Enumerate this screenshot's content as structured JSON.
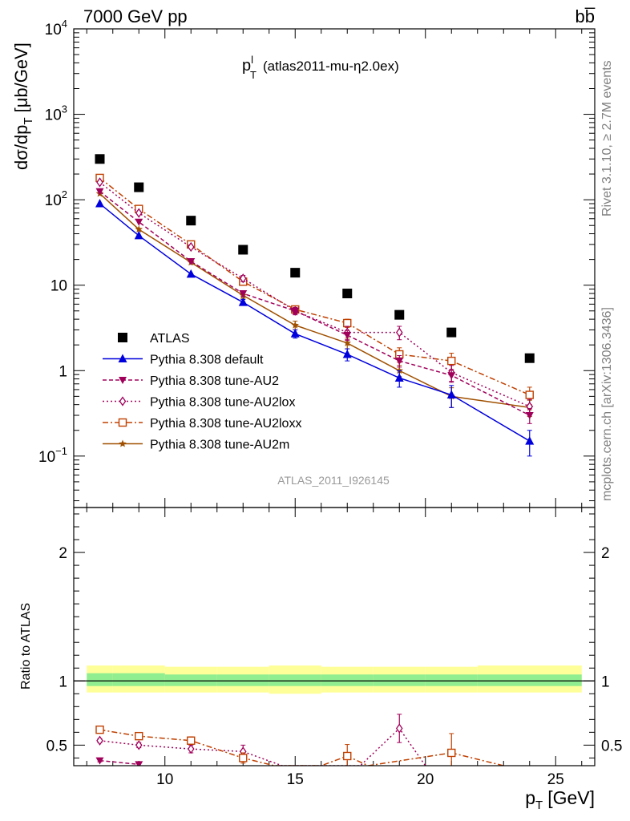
{
  "header": {
    "left": "7000 GeV pp",
    "right": "bb̅"
  },
  "side_labels": {
    "rivet": "Rivet 3.1.10, ≥ 2.7M events",
    "mcplots": "mcplots.cern.ch [arXiv:1306.3436]"
  },
  "chart_data": [
    {
      "type": "line",
      "panel": "main",
      "title": "p",
      "title_sup": "l",
      "title_sub": "T",
      "title_rest": "(atlas2011-mu-η2.0ex)",
      "ylabel": "dσ/dp",
      "ylabel_sub": "T",
      "ylabel_rest": "[μb/GeV]",
      "yscale": "log",
      "ylim": [
        0.025,
        10000
      ],
      "xlim": [
        6.5,
        26.5
      ],
      "yticks": [
        {
          "v": 0.1,
          "base": "10",
          "exp": "−1"
        },
        {
          "v": 1,
          "base": "1",
          "exp": ""
        },
        {
          "v": 10,
          "base": "10",
          "exp": ""
        },
        {
          "v": 100,
          "base": "10",
          "exp": "2"
        },
        {
          "v": 1000,
          "base": "10",
          "exp": "3"
        },
        {
          "v": 10000,
          "base": "10",
          "exp": "4"
        }
      ],
      "watermark": "ATLAS_2011_I926145",
      "legend_position": "lower-left",
      "data_series": {
        "name": "ATLAS",
        "color": "#000000",
        "x": [
          7.5,
          9,
          11,
          13,
          15,
          17,
          19,
          21,
          24
        ],
        "y": [
          300,
          140,
          57,
          26,
          14,
          8,
          4.5,
          2.8,
          1.4
        ]
      },
      "series": [
        {
          "name": "Pythia 8.308 default",
          "color": "#0000dd",
          "dash": "",
          "marker": "triangle-up",
          "x": [
            7.5,
            9,
            11,
            13,
            15,
            17,
            19,
            21,
            24
          ],
          "y": [
            90,
            38,
            13.5,
            6.3,
            2.7,
            1.55,
            0.82,
            0.52,
            0.15
          ],
          "err": [
            0,
            0,
            0,
            0.5,
            0.3,
            0.25,
            0.18,
            0.15,
            0.05
          ]
        },
        {
          "name": "Pythia 8.308 tune-AU2",
          "color": "#a0005a",
          "dash": "5,3",
          "marker": "triangle-down",
          "x": [
            7.5,
            9,
            11,
            13,
            15,
            17,
            19,
            21,
            24
          ],
          "y": [
            125,
            55,
            19,
            8,
            5,
            2.6,
            1.3,
            0.88,
            0.3
          ],
          "err": [
            0,
            0,
            0,
            0.6,
            0.4,
            0.35,
            0.2,
            0.15,
            0.06
          ]
        },
        {
          "name": "Pythia 8.308 tune-AU2lox",
          "color": "#a0005a",
          "dash": "2,3",
          "marker": "diamond-open",
          "x": [
            7.5,
            9,
            11,
            13,
            15,
            17,
            19,
            21,
            24
          ],
          "y": [
            160,
            70,
            28,
            12,
            5,
            2.8,
            2.8,
            0.95,
            0.38
          ],
          "err": [
            0,
            0,
            0,
            1,
            0.5,
            0.5,
            0.5,
            0.2,
            0.08
          ]
        },
        {
          "name": "Pythia 8.308 tune-AU2loxx",
          "color": "#c04000",
          "dash": "7,3,2,3",
          "marker": "square-open",
          "x": [
            7.5,
            9,
            11,
            13,
            15,
            17,
            19,
            21,
            24
          ],
          "y": [
            180,
            78,
            30,
            11,
            5.2,
            3.6,
            1.55,
            1.3,
            0.52
          ],
          "err": [
            0,
            0,
            0,
            1,
            0.5,
            0.4,
            0.3,
            0.3,
            0.12
          ]
        },
        {
          "name": "Pythia 8.308 tune-AU2m",
          "color": "#a05000",
          "dash": "",
          "marker": "star",
          "x": [
            7.5,
            9,
            11,
            13,
            15,
            17,
            19,
            21,
            24
          ],
          "y": [
            118,
            45,
            18.5,
            7.6,
            3.4,
            2.1,
            1.0,
            0.5,
            0.37
          ],
          "err": [
            0,
            0,
            0,
            0.6,
            0.4,
            0.3,
            0.15,
            0.13,
            0.08
          ]
        }
      ]
    },
    {
      "type": "line",
      "panel": "ratio",
      "ylabel": "Ratio to ATLAS",
      "xlabel": "p",
      "xlabel_sub": "T",
      "xlabel_rest": "[GeV]",
      "xlim": [
        6.5,
        26.5
      ],
      "ylim": [
        0.34,
        2.35
      ],
      "xticks": [
        10,
        15,
        20,
        25
      ],
      "yticks": [
        0.5,
        1,
        2
      ],
      "bands": {
        "inner_color": "#90ee90",
        "outer_color": "#ffff99",
        "bins": [
          {
            "x0": 7,
            "x1": 8,
            "inner": [
              0.96,
              1.06
            ],
            "outer": [
              0.91,
              1.12
            ]
          },
          {
            "x0": 8,
            "x1": 10,
            "inner": [
              0.96,
              1.06
            ],
            "outer": [
              0.91,
              1.12
            ]
          },
          {
            "x0": 10,
            "x1": 12,
            "inner": [
              0.96,
              1.05
            ],
            "outer": [
              0.91,
              1.11
            ]
          },
          {
            "x0": 12,
            "x1": 14,
            "inner": [
              0.96,
              1.05
            ],
            "outer": [
              0.91,
              1.11
            ]
          },
          {
            "x0": 14,
            "x1": 16,
            "inner": [
              0.96,
              1.05
            ],
            "outer": [
              0.9,
              1.12
            ]
          },
          {
            "x0": 16,
            "x1": 18,
            "inner": [
              0.96,
              1.05
            ],
            "outer": [
              0.91,
              1.11
            ]
          },
          {
            "x0": 18,
            "x1": 20,
            "inner": [
              0.96,
              1.05
            ],
            "outer": [
              0.91,
              1.11
            ]
          },
          {
            "x0": 20,
            "x1": 22,
            "inner": [
              0.96,
              1.05
            ],
            "outer": [
              0.91,
              1.11
            ]
          },
          {
            "x0": 22,
            "x1": 26,
            "inner": [
              0.96,
              1.05
            ],
            "outer": [
              0.91,
              1.12
            ]
          }
        ]
      },
      "series": [
        {
          "name": "Pythia 8.308 tune-AU2",
          "color": "#a0005a",
          "dash": "5,3",
          "marker": "triangle-down",
          "x": [
            7.5,
            9
          ],
          "y": [
            0.38,
            0.35
          ],
          "err": [
            0.01,
            0.01
          ]
        },
        {
          "name": "Pythia 8.308 tune-AU2lox",
          "color": "#a0005a",
          "dash": "2,3",
          "marker": "diamond-open",
          "x": [
            7.5,
            9,
            11,
            13,
            14.5,
            17.5,
            19,
            20
          ],
          "y": [
            0.535,
            0.5,
            0.47,
            0.45,
            0.34,
            0.34,
            0.63,
            0.34
          ],
          "err": [
            0.015,
            0.02,
            0.03,
            0.05,
            0,
            0,
            0.11,
            0
          ]
        },
        {
          "name": "Pythia 8.308 tune-AU2loxx",
          "color": "#c04000",
          "dash": "7,3,2,3",
          "marker": "square-open",
          "x": [
            7.5,
            9,
            11,
            13,
            14.2,
            16,
            17,
            17.8,
            21,
            23
          ],
          "y": [
            0.62,
            0.57,
            0.535,
            0.4,
            0.34,
            0.34,
            0.415,
            0.34,
            0.44,
            0.34
          ],
          "err": [
            0.015,
            0.015,
            0.03,
            0.04,
            0,
            0,
            0.09,
            0,
            0.15,
            0
          ]
        }
      ]
    }
  ]
}
